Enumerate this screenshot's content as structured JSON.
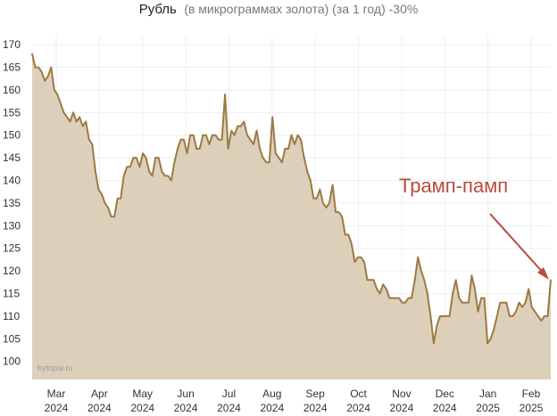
{
  "chart_data": {
    "type": "area",
    "title_main": "Рубль",
    "title_sub": "(в микрограммах золота) (за 1 год) -30%",
    "watermark": "bytopia.ru",
    "annotation": "Трамп-памп",
    "ylim": [
      96,
      172
    ],
    "y_ticks": [
      100,
      105,
      110,
      115,
      120,
      125,
      130,
      135,
      140,
      145,
      150,
      155,
      160,
      165,
      170
    ],
    "x_ticks": [
      {
        "month": "Mar",
        "year": "2024"
      },
      {
        "month": "Apr",
        "year": "2024"
      },
      {
        "month": "May",
        "year": "2024"
      },
      {
        "month": "Jun",
        "year": "2024"
      },
      {
        "month": "Jul",
        "year": "2024"
      },
      {
        "month": "Aug",
        "year": "2024"
      },
      {
        "month": "Sep",
        "year": "2024"
      },
      {
        "month": "Oct",
        "year": "2024"
      },
      {
        "month": "Nov",
        "year": "2024"
      },
      {
        "month": "Dec",
        "year": "2024"
      },
      {
        "month": "Jan",
        "year": "2025"
      },
      {
        "month": "Feb",
        "year": "2025"
      }
    ],
    "grid": true,
    "colors": {
      "line": "#9c7a43",
      "fill": "#ddd0bb",
      "arrow": "#b94a3e",
      "grid": "#eeeeee"
    },
    "series": [
      {
        "values": [
          168,
          165,
          165,
          164,
          162,
          163,
          165,
          160,
          159,
          157,
          155,
          154,
          153,
          155,
          153,
          154,
          152,
          153,
          149,
          148,
          142,
          138,
          137,
          135,
          134,
          132,
          132,
          136,
          136,
          141,
          143,
          143,
          145,
          145,
          143,
          146,
          145,
          142,
          141,
          145,
          145,
          142,
          141,
          141,
          140,
          144,
          147,
          149,
          149,
          146,
          150,
          150,
          147,
          147,
          150,
          150,
          148,
          150,
          150,
          149,
          149,
          159,
          147,
          151,
          150,
          152,
          152,
          153,
          150,
          149,
          148,
          151,
          147,
          145,
          144,
          144,
          154,
          146,
          145,
          144,
          147,
          147,
          150,
          148,
          150,
          149,
          145,
          142,
          140,
          136,
          136,
          138,
          135,
          134,
          135,
          139,
          133,
          133,
          132,
          128,
          128,
          126,
          122,
          123,
          123,
          122,
          118,
          118,
          118,
          116,
          115,
          117,
          116,
          114,
          114,
          114,
          114,
          113,
          113,
          114,
          114,
          118,
          123,
          120,
          118,
          115,
          110,
          104,
          108,
          110,
          110,
          110,
          110,
          115,
          118,
          114,
          113,
          113,
          113,
          119,
          116,
          111,
          114,
          114,
          104,
          105,
          107,
          110,
          113,
          113,
          113,
          110,
          110,
          111,
          113,
          112,
          113,
          116,
          112,
          111,
          110,
          109,
          110,
          110,
          118
        ]
      }
    ]
  }
}
